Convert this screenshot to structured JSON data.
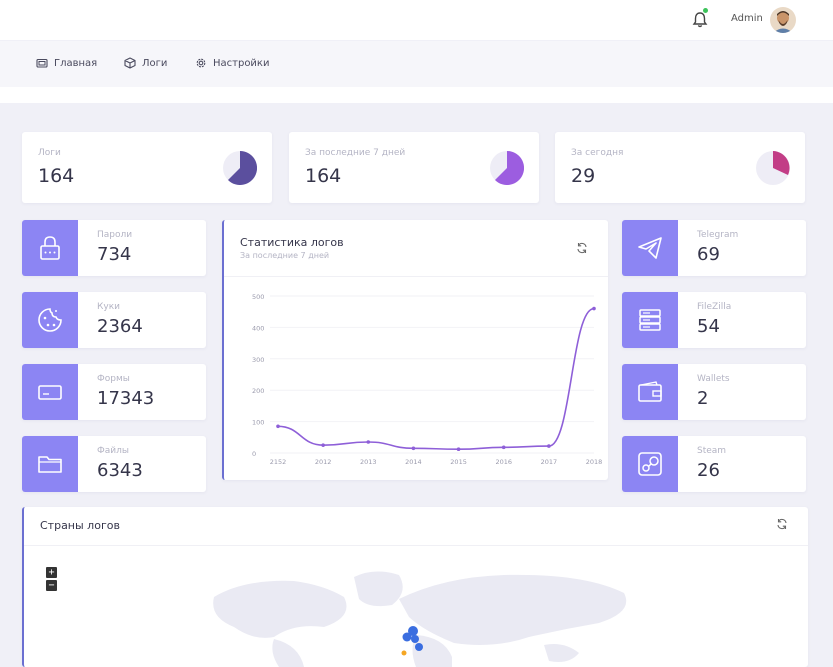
{
  "header": {
    "user_name": "Admin",
    "colors": {
      "status_dot": "#3cc35a",
      "accent": "#8c85f3"
    }
  },
  "nav": {
    "items": [
      {
        "label": "Главная",
        "icon": "home-icon"
      },
      {
        "label": "Логи",
        "icon": "box-icon"
      },
      {
        "label": "Настройки",
        "icon": "gear-icon"
      }
    ]
  },
  "stats": [
    {
      "label": "Логи",
      "value": "164",
      "fraction": 0.55
    },
    {
      "label": "За последние 7 дней",
      "value": "164",
      "fraction": 0.55
    },
    {
      "label": "За сегодня",
      "value": "29",
      "fraction": 0.35
    }
  ],
  "left_cards": [
    {
      "label": "Пароли",
      "value": "734",
      "icon": "lock-icon"
    },
    {
      "label": "Куки",
      "value": "2364",
      "icon": "cookie-icon"
    },
    {
      "label": "Формы",
      "value": "17343",
      "icon": "form-icon"
    },
    {
      "label": "Файлы",
      "value": "6343",
      "icon": "folder-icon"
    }
  ],
  "right_cards": [
    {
      "label": "Telegram",
      "value": "69",
      "icon": "telegram-icon"
    },
    {
      "label": "FileZilla",
      "value": "54",
      "icon": "server-icon"
    },
    {
      "label": "Wallets",
      "value": "2",
      "icon": "wallet-icon"
    },
    {
      "label": "Steam",
      "value": "26",
      "icon": "steam-icon"
    }
  ],
  "log_chart": {
    "title": "Статистика логов",
    "subtitle": "За последние 7 дней"
  },
  "countries": {
    "title": "Страны логов",
    "zoom_in": "+",
    "zoom_out": "−"
  },
  "chart_data": {
    "type": "line",
    "title": "Статистика логов",
    "categories": [
      "2152",
      "2012",
      "2013",
      "2014",
      "2015",
      "2016",
      "2017",
      "2018"
    ],
    "values": [
      85,
      25,
      35,
      15,
      12,
      18,
      22,
      460
    ],
    "ylim": [
      0,
      500
    ],
    "yticks": [
      "0",
      "100",
      "200",
      "300",
      "400",
      "500"
    ],
    "grid": true,
    "line_color": "#8e5fd8"
  }
}
